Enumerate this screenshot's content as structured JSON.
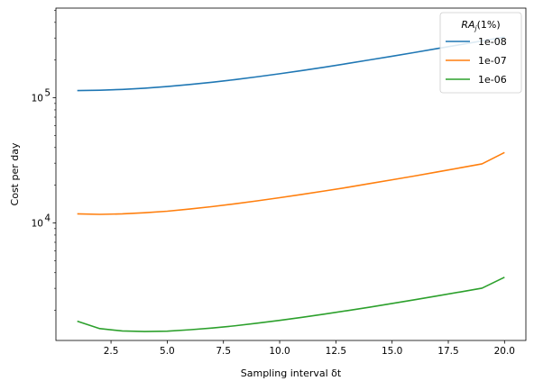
{
  "chart_data": {
    "type": "line",
    "xlabel": "Sampling interval δt",
    "ylabel": "Cost per day",
    "xlim": [
      0.05,
      20.95
    ],
    "ylim": [
      1150,
      520000
    ],
    "yscale": "log",
    "x_ticks": [
      2.5,
      5.0,
      7.5,
      10.0,
      12.5,
      15.0,
      17.5,
      20.0
    ],
    "x_tick_labels": [
      "2.5",
      "5.0",
      "7.5",
      "10.0",
      "12.5",
      "15.0",
      "17.5",
      "20.0"
    ],
    "y_major_ticks": [
      {
        "value": 10000,
        "base": "10",
        "exp": "4"
      },
      {
        "value": 100000,
        "base": "10",
        "exp": "5"
      }
    ],
    "grid": false,
    "legend": {
      "title_main": "RA",
      "title_sub": "j",
      "title_suffix": "(1%)",
      "placement": "upper-right"
    },
    "x": [
      1,
      2,
      3,
      4,
      5,
      6,
      7,
      8,
      9,
      10,
      11,
      12,
      13,
      14,
      15,
      16,
      17,
      18,
      19,
      20
    ],
    "series": [
      {
        "name": "1e-08",
        "color": "#1f77b4",
        "values": [
          114000,
          114800,
          116500,
          119200,
          122800,
          127500,
          133000,
          139500,
          147000,
          155500,
          165000,
          175500,
          187500,
          200500,
          214500,
          230000,
          247000,
          265000,
          284500,
          305000
        ]
      },
      {
        "name": "1e-07",
        "color": "#ff7f0e",
        "values": [
          11800,
          11700,
          11800,
          12050,
          12400,
          12900,
          13500,
          14200,
          15000,
          15900,
          16900,
          18000,
          19200,
          20600,
          22100,
          23700,
          25500,
          27500,
          29600,
          36500
        ]
      },
      {
        "name": "1e-06",
        "color": "#2ca02c",
        "values": [
          1640,
          1430,
          1370,
          1355,
          1365,
          1400,
          1445,
          1505,
          1580,
          1665,
          1760,
          1870,
          1990,
          2120,
          2270,
          2430,
          2610,
          2800,
          3010,
          3680
        ]
      }
    ]
  }
}
